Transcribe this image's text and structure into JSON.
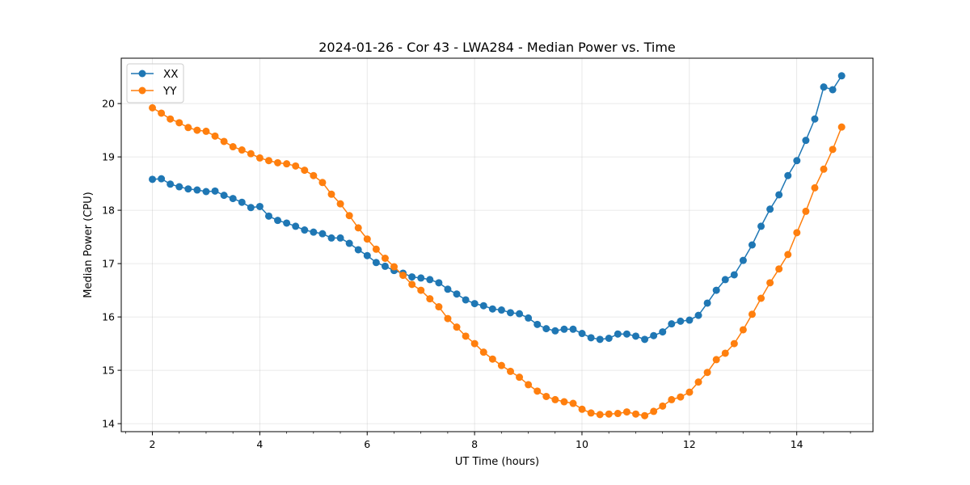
{
  "chart_data": {
    "type": "line",
    "title": "2024-01-26 - Cor 43 - LWA284 - Median Power vs. Time",
    "xlabel": "UT Time (hours)",
    "ylabel": "Median Power (CPU)",
    "xlim": [
      1.42,
      15.42
    ],
    "ylim": [
      13.85,
      20.85
    ],
    "x_ticks": [
      2,
      4,
      6,
      8,
      10,
      12,
      14
    ],
    "y_ticks": [
      14,
      15,
      16,
      17,
      18,
      19,
      20
    ],
    "grid": true,
    "legend": "top-left",
    "x_start": 2.0,
    "x_step": 0.1667,
    "series": [
      {
        "name": "XX",
        "color": "#1f77b4",
        "values": [
          18.58,
          18.59,
          18.49,
          18.44,
          18.4,
          18.38,
          18.35,
          18.36,
          18.28,
          18.22,
          18.15,
          18.05,
          18.07,
          17.89,
          17.81,
          17.76,
          17.7,
          17.63,
          17.59,
          17.56,
          17.48,
          17.48,
          17.38,
          17.26,
          17.15,
          17.02,
          16.95,
          16.87,
          16.82,
          16.75,
          16.73,
          16.7,
          16.64,
          16.52,
          16.43,
          16.32,
          16.25,
          16.21,
          16.15,
          16.13,
          16.08,
          16.06,
          15.98,
          15.86,
          15.78,
          15.74,
          15.77,
          15.77,
          15.69,
          15.61,
          15.58,
          15.6,
          15.68,
          15.68,
          15.64,
          15.58,
          15.65,
          15.72,
          15.87,
          15.92,
          15.94,
          16.03,
          16.26,
          16.5,
          16.7,
          16.79,
          17.06,
          17.35,
          17.7,
          18.02,
          18.29,
          18.65,
          18.93,
          19.31,
          19.71,
          20.31,
          20.26,
          20.52
        ]
      },
      {
        "name": "YY",
        "color": "#ff7f0e",
        "values": [
          19.92,
          19.82,
          19.71,
          19.64,
          19.55,
          19.5,
          19.48,
          19.39,
          19.29,
          19.19,
          19.13,
          19.06,
          18.98,
          18.93,
          18.89,
          18.87,
          18.83,
          18.75,
          18.65,
          18.52,
          18.3,
          18.12,
          17.9,
          17.67,
          17.46,
          17.27,
          17.1,
          16.94,
          16.78,
          16.61,
          16.5,
          16.34,
          16.19,
          15.97,
          15.81,
          15.64,
          15.5,
          15.34,
          15.21,
          15.09,
          14.98,
          14.87,
          14.73,
          14.61,
          14.51,
          14.45,
          14.41,
          14.38,
          14.27,
          14.2,
          14.17,
          14.18,
          14.19,
          14.22,
          14.18,
          14.15,
          14.23,
          14.33,
          14.45,
          14.5,
          14.59,
          14.78,
          14.96,
          15.2,
          15.32,
          15.5,
          15.76,
          16.05,
          16.35,
          16.64,
          16.9,
          17.17,
          17.58,
          17.98,
          18.42,
          18.77,
          19.14,
          19.56
        ]
      }
    ]
  }
}
